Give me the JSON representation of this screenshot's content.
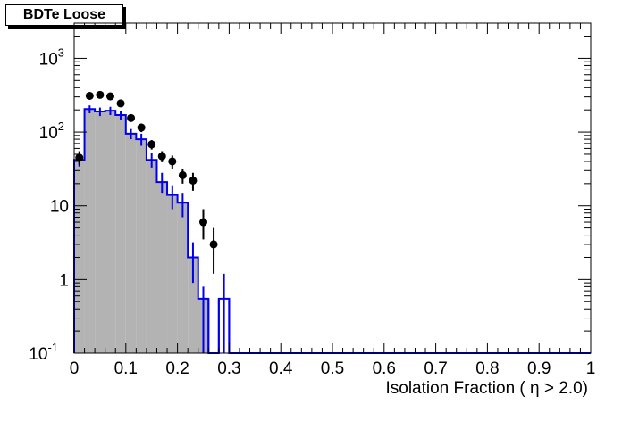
{
  "chart_data": {
    "type": "histogram",
    "title": "BDTe Loose",
    "xlabel": "Isolation Fraction ( η > 2.0)",
    "ylabel": "",
    "xlim": [
      0,
      1
    ],
    "ylim": [
      0.1,
      3000
    ],
    "yscale": "log",
    "x_ticks": [
      "0",
      "0.1",
      "0.2",
      "0.3",
      "0.4",
      "0.5",
      "0.6",
      "0.7",
      "0.8",
      "0.9",
      "1"
    ],
    "y_ticks": [
      {
        "value": 0.1,
        "label": "10",
        "sup": "-1"
      },
      {
        "value": 1,
        "label": "1",
        "sup": ""
      },
      {
        "value": 10,
        "label": "10",
        "sup": ""
      },
      {
        "value": 100,
        "label": "10",
        "sup": "2"
      },
      {
        "value": 1000,
        "label": "10",
        "sup": "3"
      }
    ],
    "bin_width": 0.02,
    "series": [
      {
        "name": "",
        "kind": "filled histogram",
        "color": "#b3b3b3",
        "bin_low_edges": [
          0.0,
          0.02,
          0.04,
          0.06,
          0.08,
          0.1,
          0.12,
          0.14,
          0.16,
          0.18,
          0.2,
          0.22,
          0.24,
          0.26,
          0.28,
          0.3
        ],
        "values": [
          42,
          205,
          190,
          195,
          170,
          95,
          80,
          42,
          21,
          14,
          11,
          2,
          0.55,
          0.1,
          0.1,
          0.1
        ]
      },
      {
        "name": "",
        "kind": "line histogram",
        "color": "#0000ee",
        "bin_low_edges": [
          0.0,
          0.02,
          0.04,
          0.06,
          0.08,
          0.1,
          0.12,
          0.14,
          0.16,
          0.18,
          0.2,
          0.22,
          0.24,
          0.26,
          0.28,
          0.3
        ],
        "values": [
          42,
          205,
          190,
          195,
          170,
          95,
          80,
          42,
          21,
          14,
          11,
          2,
          0.55,
          0.1,
          0.55,
          0.1
        ],
        "errors_up": [
          48,
          230,
          215,
          220,
          195,
          110,
          95,
          52,
          28,
          19,
          15,
          3.2,
          0.8,
          0.1,
          1.2,
          0.1
        ],
        "errors_down": [
          34,
          180,
          165,
          170,
          145,
          80,
          65,
          33,
          15,
          9,
          7,
          0.9,
          0.1,
          0.1,
          0.1,
          0.1
        ]
      },
      {
        "name": "",
        "kind": "points with error bars",
        "color": "#000000",
        "x": [
          0.01,
          0.03,
          0.05,
          0.07,
          0.09,
          0.11,
          0.13,
          0.15,
          0.17,
          0.19,
          0.21,
          0.23,
          0.25,
          0.27
        ],
        "y": [
          45,
          310,
          320,
          305,
          245,
          155,
          115,
          68,
          47,
          40,
          26,
          22,
          6,
          3
        ],
        "y_err_up": [
          55,
          340,
          350,
          335,
          270,
          172,
          130,
          78,
          55,
          48,
          32,
          28,
          9,
          5
        ],
        "y_err_down": [
          36,
          280,
          290,
          275,
          220,
          138,
          100,
          58,
          39,
          32,
          20,
          16,
          3.5,
          1.2
        ]
      }
    ],
    "grid": false,
    "legend": "none"
  }
}
